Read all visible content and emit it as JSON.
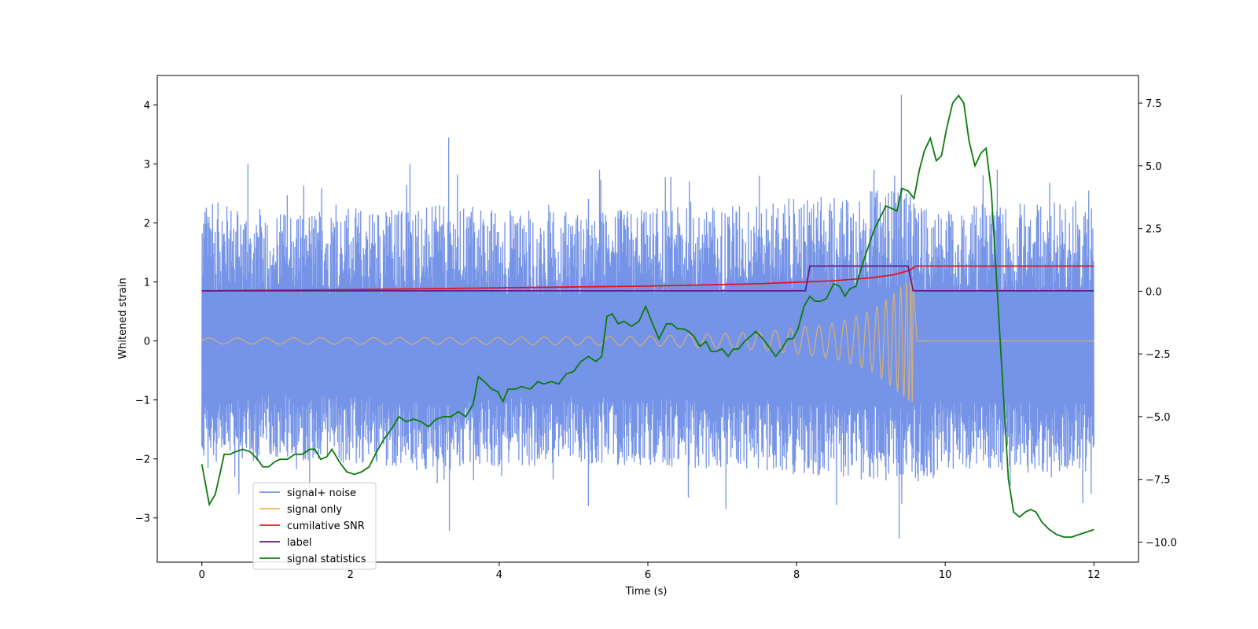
{
  "chart_data": {
    "type": "line",
    "title": "",
    "xlabel": "Time (s)",
    "ylabel": "Whitened strain",
    "y2label": "",
    "xlim": [
      -0.6,
      12.6
    ],
    "ylim": [
      -3.75,
      4.5
    ],
    "y2lim": [
      -10.8,
      8.6
    ],
    "x_ticks": [
      0,
      2,
      4,
      6,
      8,
      10,
      12
    ],
    "y_ticks": [
      -3,
      -2,
      -1,
      0,
      1,
      2,
      3,
      4
    ],
    "y2_ticks": [
      -10.0,
      -7.5,
      -5.0,
      -2.5,
      0.0,
      2.5,
      5.0,
      7.5
    ],
    "x_tick_labels": [
      "0",
      "2",
      "4",
      "6",
      "8",
      "10",
      "12"
    ],
    "y_tick_labels": [
      "−3",
      "−2",
      "−1",
      "0",
      "1",
      "2",
      "3",
      "4"
    ],
    "y2_tick_labels": [
      "−10.0",
      "−7.5",
      "−5.0",
      "−2.5",
      "0.0",
      "2.5",
      "5.0",
      "7.5"
    ],
    "legend_position": "lower-left",
    "series": [
      {
        "name": "signal+ noise",
        "color": "#6f8ee6",
        "axis": "left",
        "kind": "noise",
        "x_range": [
          0,
          12
        ],
        "envelope_upper": [
          [
            0,
            2.4
          ],
          [
            1,
            2.2
          ],
          [
            3,
            2.3
          ],
          [
            5,
            2.2
          ],
          [
            7,
            2.3
          ],
          [
            8.5,
            2.5
          ],
          [
            9.4,
            2.6
          ],
          [
            10,
            2.3
          ],
          [
            12,
            2.4
          ]
        ],
        "envelope_lower": [
          [
            0,
            -2.2
          ],
          [
            1,
            -2.0
          ],
          [
            3,
            -2.2
          ],
          [
            5,
            -2.1
          ],
          [
            7,
            -2.2
          ],
          [
            8.5,
            -2.3
          ],
          [
            9.4,
            -2.5
          ],
          [
            10,
            -2.2
          ],
          [
            12,
            -2.3
          ]
        ],
        "spikes": [
          [
            0.62,
            3.0
          ],
          [
            1.45,
            -2.8
          ],
          [
            2.8,
            3.0
          ],
          [
            3.32,
            3.45
          ],
          [
            3.33,
            -3.22
          ],
          [
            5.2,
            -2.8
          ],
          [
            5.35,
            2.9
          ],
          [
            7.05,
            -2.85
          ],
          [
            7.5,
            2.8
          ],
          [
            9.32,
            2.8
          ],
          [
            9.38,
            -3.35
          ],
          [
            9.41,
            4.17
          ],
          [
            10.7,
            2.9
          ],
          [
            11.85,
            -2.75
          ]
        ]
      },
      {
        "name": "signal only",
        "color": "#f5b850",
        "axis": "left",
        "kind": "chirp",
        "merger_time": 9.57,
        "ringdown_end": 9.62,
        "amplitude_points": [
          [
            0,
            0.05
          ],
          [
            4,
            0.06
          ],
          [
            6,
            0.08
          ],
          [
            7.5,
            0.15
          ],
          [
            8.5,
            0.3
          ],
          [
            9,
            0.5
          ],
          [
            9.3,
            0.8
          ],
          [
            9.5,
            1.0
          ],
          [
            9.57,
            1.05
          ]
        ]
      },
      {
        "name": "cumilative SNR",
        "color": "#e0141e",
        "axis": "left",
        "points": [
          [
            0,
            0.85
          ],
          [
            2,
            0.87
          ],
          [
            4,
            0.9
          ],
          [
            6,
            0.93
          ],
          [
            7.5,
            0.97
          ],
          [
            8.5,
            1.02
          ],
          [
            9.0,
            1.07
          ],
          [
            9.3,
            1.12
          ],
          [
            9.5,
            1.19
          ],
          [
            9.55,
            1.22
          ],
          [
            9.6,
            1.27
          ],
          [
            12,
            1.27
          ]
        ]
      },
      {
        "name": "label",
        "color": "#6a1a86",
        "axis": "left",
        "points": [
          [
            0,
            0.85
          ],
          [
            8.12,
            0.85
          ],
          [
            8.18,
            1.27
          ],
          [
            9.5,
            1.27
          ],
          [
            9.57,
            0.85
          ],
          [
            12,
            0.85
          ]
        ]
      },
      {
        "name": "signal statistics",
        "color": "#0b7a0b",
        "axis": "right",
        "points": [
          [
            0,
            -6.9
          ],
          [
            0.1,
            -8.5
          ],
          [
            0.18,
            -8.1
          ],
          [
            0.25,
            -7.2
          ],
          [
            0.3,
            -6.5
          ],
          [
            0.38,
            -6.5
          ],
          [
            0.45,
            -6.4
          ],
          [
            0.55,
            -6.3
          ],
          [
            0.65,
            -6.4
          ],
          [
            0.75,
            -6.7
          ],
          [
            0.82,
            -7.0
          ],
          [
            0.9,
            -7.0
          ],
          [
            0.98,
            -6.8
          ],
          [
            1.05,
            -6.7
          ],
          [
            1.15,
            -6.7
          ],
          [
            1.25,
            -6.5
          ],
          [
            1.35,
            -6.5
          ],
          [
            1.45,
            -6.3
          ],
          [
            1.52,
            -6.3
          ],
          [
            1.6,
            -6.7
          ],
          [
            1.68,
            -6.6
          ],
          [
            1.75,
            -6.3
          ],
          [
            1.85,
            -6.8
          ],
          [
            1.95,
            -7.2
          ],
          [
            2.05,
            -7.3
          ],
          [
            2.15,
            -7.2
          ],
          [
            2.25,
            -7.0
          ],
          [
            2.35,
            -6.4
          ],
          [
            2.45,
            -5.9
          ],
          [
            2.55,
            -5.5
          ],
          [
            2.65,
            -5.0
          ],
          [
            2.75,
            -5.2
          ],
          [
            2.85,
            -5.1
          ],
          [
            2.95,
            -5.2
          ],
          [
            3.05,
            -5.4
          ],
          [
            3.15,
            -5.1
          ],
          [
            3.25,
            -5.0
          ],
          [
            3.35,
            -5.0
          ],
          [
            3.45,
            -4.8
          ],
          [
            3.55,
            -5.0
          ],
          [
            3.65,
            -4.5
          ],
          [
            3.72,
            -3.4
          ],
          [
            3.8,
            -3.6
          ],
          [
            3.9,
            -3.9
          ],
          [
            3.98,
            -4.0
          ],
          [
            4.05,
            -4.4
          ],
          [
            4.12,
            -3.9
          ],
          [
            4.22,
            -3.9
          ],
          [
            4.3,
            -3.8
          ],
          [
            4.42,
            -3.9
          ],
          [
            4.52,
            -3.6
          ],
          [
            4.6,
            -3.7
          ],
          [
            4.7,
            -3.6
          ],
          [
            4.8,
            -3.7
          ],
          [
            4.9,
            -3.3
          ],
          [
            5.0,
            -3.2
          ],
          [
            5.1,
            -2.8
          ],
          [
            5.2,
            -2.6
          ],
          [
            5.3,
            -2.8
          ],
          [
            5.38,
            -2.6
          ],
          [
            5.45,
            -1.0
          ],
          [
            5.52,
            -0.9
          ],
          [
            5.6,
            -1.3
          ],
          [
            5.68,
            -1.2
          ],
          [
            5.78,
            -1.4
          ],
          [
            5.88,
            -1.2
          ],
          [
            5.97,
            -0.6
          ],
          [
            6.05,
            -1.2
          ],
          [
            6.15,
            -1.9
          ],
          [
            6.25,
            -1.3
          ],
          [
            6.32,
            -1.3
          ],
          [
            6.4,
            -1.5
          ],
          [
            6.48,
            -1.5
          ],
          [
            6.55,
            -1.6
          ],
          [
            6.62,
            -1.8
          ],
          [
            6.7,
            -2.2
          ],
          [
            6.78,
            -2.0
          ],
          [
            6.85,
            -2.4
          ],
          [
            6.92,
            -2.4
          ],
          [
            7.0,
            -2.3
          ],
          [
            7.08,
            -2.6
          ],
          [
            7.15,
            -2.3
          ],
          [
            7.22,
            -2.3
          ],
          [
            7.3,
            -2.0
          ],
          [
            7.38,
            -1.8
          ],
          [
            7.45,
            -1.6
          ],
          [
            7.55,
            -1.9
          ],
          [
            7.65,
            -2.3
          ],
          [
            7.72,
            -2.6
          ],
          [
            7.8,
            -2.3
          ],
          [
            7.88,
            -1.9
          ],
          [
            7.95,
            -1.9
          ],
          [
            8.02,
            -1.5
          ],
          [
            8.1,
            -0.6
          ],
          [
            8.18,
            -0.2
          ],
          [
            8.25,
            -0.4
          ],
          [
            8.32,
            -0.4
          ],
          [
            8.4,
            -0.3
          ],
          [
            8.5,
            0.3
          ],
          [
            8.58,
            0.2
          ],
          [
            8.65,
            -0.2
          ],
          [
            8.72,
            0.1
          ],
          [
            8.8,
            0.2
          ],
          [
            8.9,
            1.2
          ],
          [
            8.98,
            1.9
          ],
          [
            9.05,
            2.5
          ],
          [
            9.12,
            2.9
          ],
          [
            9.2,
            3.4
          ],
          [
            9.28,
            3.3
          ],
          [
            9.35,
            3.2
          ],
          [
            9.42,
            4.1
          ],
          [
            9.5,
            4.0
          ],
          [
            9.58,
            3.7
          ],
          [
            9.65,
            4.8
          ],
          [
            9.72,
            5.6
          ],
          [
            9.8,
            6.1
          ],
          [
            9.88,
            5.2
          ],
          [
            9.95,
            5.4
          ],
          [
            10.02,
            6.5
          ],
          [
            10.1,
            7.5
          ],
          [
            10.18,
            7.8
          ],
          [
            10.25,
            7.5
          ],
          [
            10.32,
            6.0
          ],
          [
            10.4,
            5.0
          ],
          [
            10.48,
            5.5
          ],
          [
            10.55,
            5.7
          ],
          [
            10.62,
            4.0
          ],
          [
            10.7,
            0.0
          ],
          [
            10.78,
            -4.0
          ],
          [
            10.85,
            -7.5
          ],
          [
            10.92,
            -8.8
          ],
          [
            11.0,
            -9.0
          ],
          [
            11.08,
            -8.8
          ],
          [
            11.15,
            -8.7
          ],
          [
            11.22,
            -8.8
          ],
          [
            11.3,
            -9.2
          ],
          [
            11.4,
            -9.5
          ],
          [
            11.5,
            -9.7
          ],
          [
            11.6,
            -9.8
          ],
          [
            11.7,
            -9.8
          ],
          [
            11.8,
            -9.7
          ],
          [
            11.9,
            -9.6
          ],
          [
            12.0,
            -9.5
          ]
        ]
      }
    ]
  }
}
